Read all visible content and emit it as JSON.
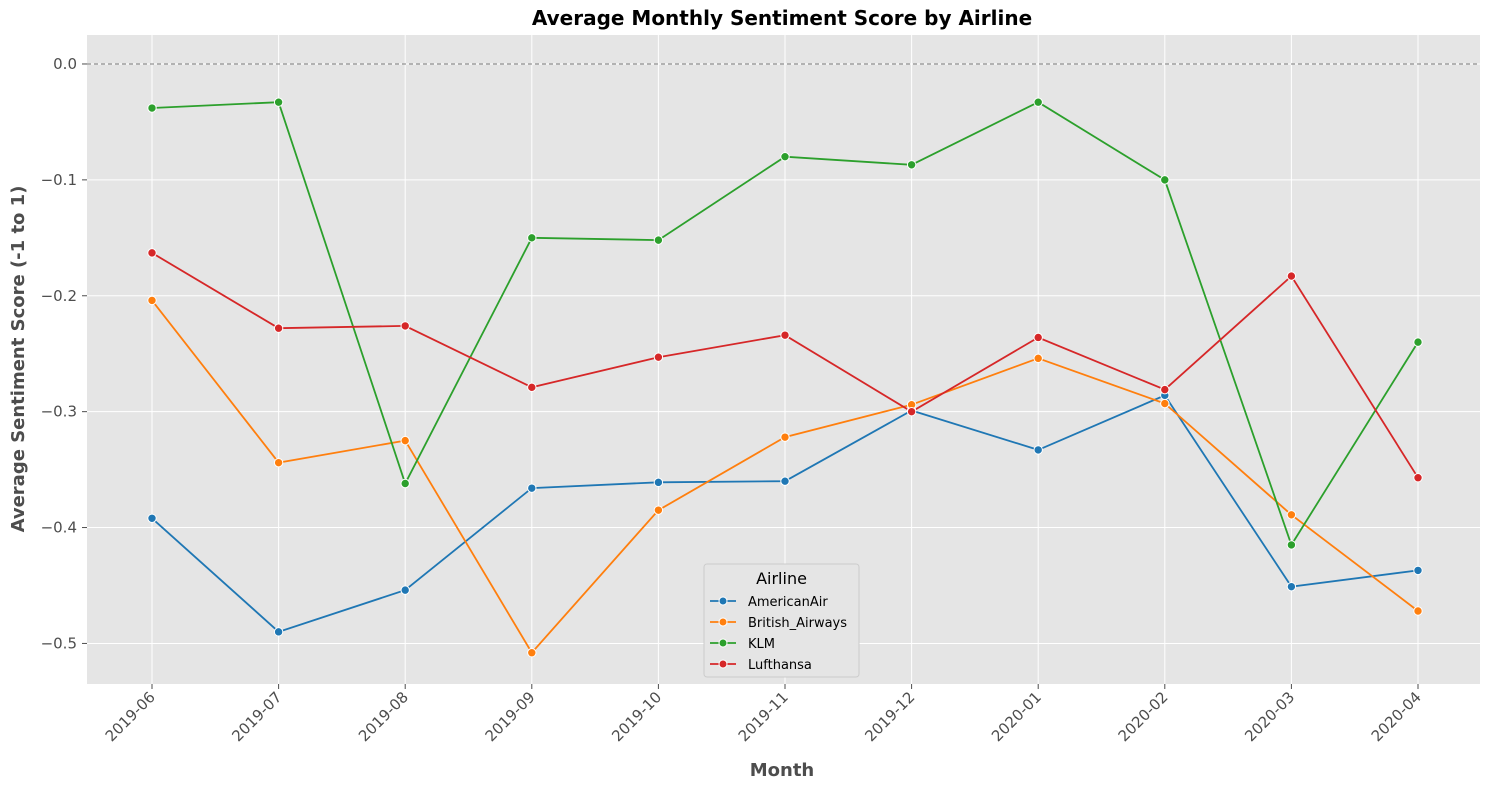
{
  "chart_data": {
    "type": "line",
    "title": "Average Monthly Sentiment Score by Airline",
    "xlabel": "Month",
    "ylabel": "Average Sentiment Score (-1 to 1)",
    "categories": [
      "2019-06",
      "2019-07",
      "2019-08",
      "2019-09",
      "2019-10",
      "2019-11",
      "2019-12",
      "2020-01",
      "2020-02",
      "2020-03",
      "2020-04"
    ],
    "ylim": [
      -0.535,
      0.025
    ],
    "yticks": [
      0.0,
      -0.1,
      -0.2,
      -0.3,
      -0.4,
      -0.5
    ],
    "ytick_labels": [
      "0.0",
      "−0.1",
      "−0.2",
      "−0.3",
      "−0.4",
      "−0.5"
    ],
    "reference_line_y": 0.0,
    "grid": true,
    "legend": {
      "title": "Airline",
      "placement": "lower-center"
    },
    "series": [
      {
        "name": "AmericanAir",
        "color": "#1f77b4",
        "values": [
          -0.392,
          -0.49,
          -0.454,
          -0.366,
          -0.361,
          -0.36,
          -0.299,
          -0.333,
          -0.286,
          -0.451,
          -0.437
        ]
      },
      {
        "name": "British_Airways",
        "color": "#ff7f0e",
        "values": [
          -0.204,
          -0.344,
          -0.325,
          -0.508,
          -0.385,
          -0.322,
          -0.294,
          -0.254,
          -0.293,
          -0.389,
          -0.472
        ]
      },
      {
        "name": "KLM",
        "color": "#2ca02c",
        "values": [
          -0.038,
          -0.033,
          -0.362,
          -0.15,
          -0.152,
          -0.08,
          -0.087,
          -0.033,
          -0.1,
          -0.415,
          -0.24
        ]
      },
      {
        "name": "Lufthansa",
        "color": "#d62728",
        "values": [
          -0.163,
          -0.228,
          -0.226,
          -0.279,
          -0.253,
          -0.234,
          -0.3,
          -0.236,
          -0.281,
          -0.183,
          -0.357
        ]
      }
    ]
  }
}
